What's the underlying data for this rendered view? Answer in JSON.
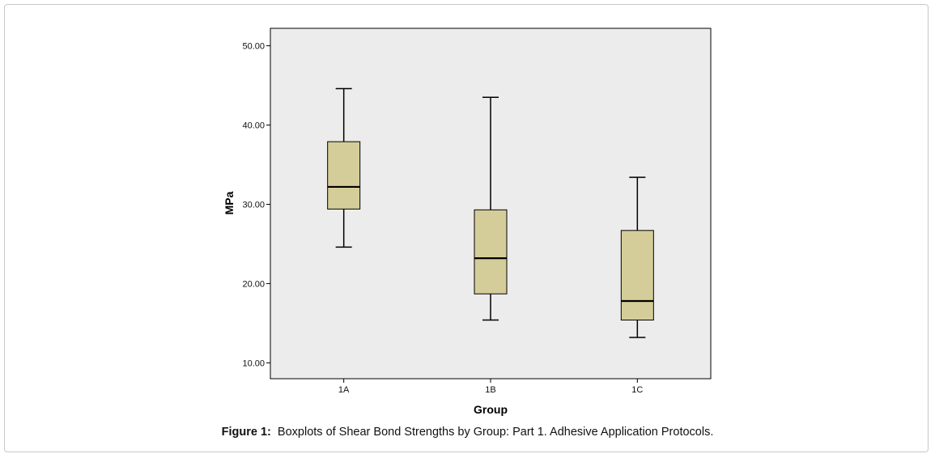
{
  "caption": {
    "label": "Figure 1:",
    "text": "Boxplots of Shear Bond Strengths by Group: Part 1. Adhesive Application Protocols."
  },
  "colors": {
    "plot_background": "#ececec",
    "box_fill": "#d4cd99",
    "stroke": "#000000"
  },
  "chart_data": {
    "type": "boxplot",
    "title": "",
    "xlabel": "Group",
    "ylabel": "MPa",
    "ylim": [
      8.0,
      52.2
    ],
    "yticks": [
      10,
      20,
      30,
      40,
      50
    ],
    "ytick_labels": [
      "10.00",
      "20.00",
      "30.00",
      "40.00",
      "50.00"
    ],
    "categories": [
      "1A",
      "1B",
      "1C"
    ],
    "boxes": [
      {
        "category": "1A",
        "whisker_low": 24.6,
        "q1": 29.4,
        "median": 32.2,
        "q3": 37.9,
        "whisker_high": 44.6
      },
      {
        "category": "1B",
        "whisker_low": 15.4,
        "q1": 18.7,
        "median": 23.2,
        "q3": 29.3,
        "whisker_high": 43.5
      },
      {
        "category": "1C",
        "whisker_low": 13.2,
        "q1": 15.4,
        "median": 17.8,
        "q3": 26.7,
        "whisker_high": 33.4
      }
    ],
    "grid": false,
    "legend": "none"
  }
}
